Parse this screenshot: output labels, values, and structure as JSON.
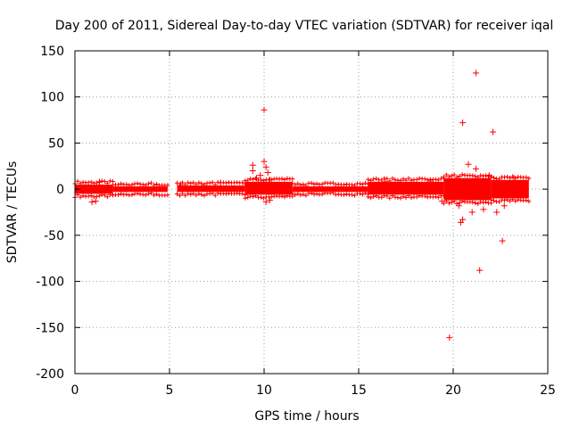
{
  "chart_data": {
    "type": "scatter",
    "title": "Day 200 of 2011, Sidereal Day-to-day VTEC variation (SDTVAR) for receiver iqal",
    "xlabel": "GPS time / hours",
    "ylabel": "SDTVAR / TECUs",
    "xlim": [
      0,
      25
    ],
    "ylim": [
      -200,
      150
    ],
    "x_ticks": [
      {
        "value": 0,
        "label": "0"
      },
      {
        "value": 5,
        "label": "5"
      },
      {
        "value": 10,
        "label": "10"
      },
      {
        "value": 15,
        "label": "15"
      },
      {
        "value": 20,
        "label": "20"
      },
      {
        "value": 25,
        "label": "25"
      }
    ],
    "y_ticks": [
      {
        "value": 150,
        "label": "150"
      },
      {
        "value": 100,
        "label": "100"
      },
      {
        "value": 50,
        "label": "50"
      },
      {
        "value": 0,
        "label": "0"
      },
      {
        "value": -50,
        "label": "-50"
      },
      {
        "value": -100,
        "label": "-100"
      },
      {
        "value": -150,
        "label": "-150"
      },
      {
        "value": -200,
        "label": "-200"
      }
    ],
    "grid": true,
    "marker": "+",
    "series_color": "#ff0000",
    "dense_bands": [
      {
        "x_start": 0.0,
        "x_end": 2.0,
        "y_min": -5,
        "y_max": 5
      },
      {
        "x_start": 2.0,
        "x_end": 4.9,
        "y_min": -3,
        "y_max": 3
      },
      {
        "x_start": 5.4,
        "x_end": 9.0,
        "y_min": -3,
        "y_max": 4
      },
      {
        "x_start": 9.0,
        "x_end": 11.5,
        "y_min": -6,
        "y_max": 8
      },
      {
        "x_start": 11.5,
        "x_end": 15.5,
        "y_min": -3,
        "y_max": 3
      },
      {
        "x_start": 15.5,
        "x_end": 19.5,
        "y_min": -6,
        "y_max": 8
      },
      {
        "x_start": 19.5,
        "x_end": 22.0,
        "y_min": -12,
        "y_max": 12
      },
      {
        "x_start": 22.0,
        "x_end": 24.0,
        "y_min": -10,
        "y_max": 10
      }
    ],
    "points": [
      {
        "x": 10.0,
        "y": 86
      },
      {
        "x": 21.2,
        "y": 126
      },
      {
        "x": 20.5,
        "y": 72
      },
      {
        "x": 22.1,
        "y": 62
      },
      {
        "x": 22.6,
        "y": -56
      },
      {
        "x": 21.4,
        "y": -88
      },
      {
        "x": 19.8,
        "y": -161
      },
      {
        "x": 20.8,
        "y": 27
      },
      {
        "x": 21.2,
        "y": 22
      },
      {
        "x": 20.4,
        "y": -36
      },
      {
        "x": 20.5,
        "y": -33
      },
      {
        "x": 21.0,
        "y": -25
      },
      {
        "x": 21.6,
        "y": -22
      },
      {
        "x": 22.3,
        "y": -25
      },
      {
        "x": 9.4,
        "y": 26
      },
      {
        "x": 9.4,
        "y": 20
      },
      {
        "x": 10.0,
        "y": 30
      },
      {
        "x": 10.1,
        "y": 24
      },
      {
        "x": 10.2,
        "y": 18
      },
      {
        "x": 9.6,
        "y": 12
      },
      {
        "x": 9.8,
        "y": 15
      },
      {
        "x": 10.3,
        "y": 10
      },
      {
        "x": 10.1,
        "y": -14
      },
      {
        "x": 10.3,
        "y": -12
      },
      {
        "x": 0.9,
        "y": -14
      },
      {
        "x": 1.1,
        "y": -13
      },
      {
        "x": 1.3,
        "y": 8
      },
      {
        "x": 5.6,
        "y": 5
      },
      {
        "x": 7.7,
        "y": 7
      },
      {
        "x": 20.3,
        "y": -18
      },
      {
        "x": 21.9,
        "y": 15
      },
      {
        "x": 22.7,
        "y": -18
      },
      {
        "x": 23.2,
        "y": 12
      },
      {
        "x": 18.8,
        "y": 9
      },
      {
        "x": 19.4,
        "y": -13
      },
      {
        "x": 16.4,
        "y": 8
      }
    ]
  }
}
